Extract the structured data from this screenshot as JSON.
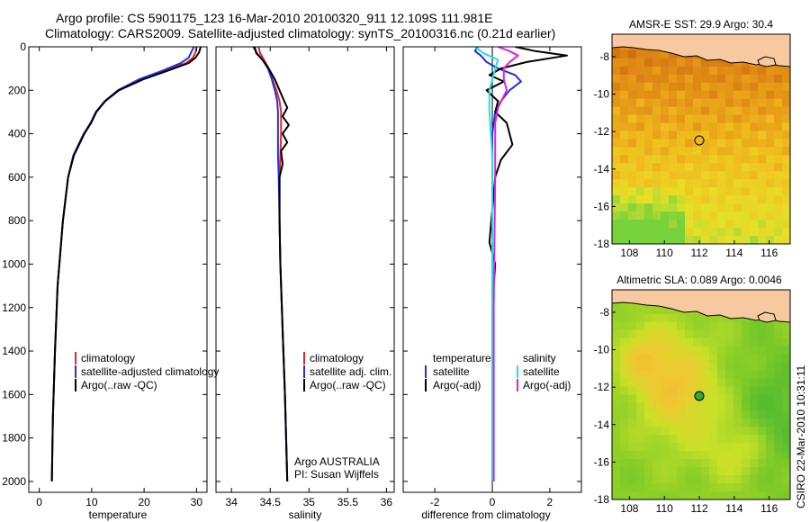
{
  "header": {
    "line1": "Argo profile: CS 5901175_123 16-Mar-2010 20100320_911 12.109S 111.981E",
    "line2": "Climatology: CARS2009. Satellite-adjusted climatology: synTS_20100316.nc (0.21d earlier)"
  },
  "side_stamp": "CSIRO 22-Mar-2010 10:31:11",
  "colors": {
    "clim": "#e8261c",
    "sat": "#2233dd",
    "argo": "#000000",
    "sal_sat": "#22dddd",
    "sal_argo": "#dd22dd",
    "land": "#f7c9a0"
  },
  "chart_data": [
    {
      "type": "line",
      "xlabel": "temperature",
      "xlim": [
        -2,
        32
      ],
      "ylim": [
        2050,
        0
      ],
      "xticks": [
        0,
        10,
        20,
        30
      ],
      "yticks": [
        0,
        200,
        400,
        600,
        800,
        1000,
        1200,
        1400,
        1600,
        1800,
        2000
      ],
      "legend": [
        "climatology",
        "satellite-adjusted climatology",
        "Argo(..raw -QC)"
      ],
      "series": [
        {
          "name": "climatology",
          "color": "#e8261c",
          "x": [
            30.0,
            29.8,
            29.3,
            28.0,
            24.0,
            19.5,
            15.0,
            12.5,
            10.8,
            9.8,
            8.5,
            7.5,
            6.5,
            5.5,
            4.5,
            3.5,
            3.0,
            2.6,
            2.4
          ],
          "y": [
            0,
            25,
            50,
            75,
            110,
            150,
            200,
            250,
            300,
            350,
            400,
            450,
            500,
            600,
            800,
            1100,
            1400,
            1700,
            2000
          ]
        },
        {
          "name": "satellite-adjusted climatology",
          "color": "#2233dd",
          "x": [
            29.5,
            29.0,
            28.5,
            27.0,
            23.5,
            19.0,
            15.0,
            12.5,
            10.8,
            9.8,
            8.5,
            7.5,
            6.5,
            5.5,
            4.5,
            3.5,
            3.0,
            2.6,
            2.4
          ],
          "y": [
            0,
            25,
            50,
            75,
            110,
            150,
            200,
            250,
            300,
            350,
            400,
            450,
            500,
            600,
            800,
            1100,
            1400,
            1700,
            2000
          ]
        },
        {
          "name": "Argo(..raw -QC)",
          "color": "#000000",
          "x": [
            30.8,
            30.5,
            29.8,
            28.5,
            24.5,
            19.8,
            15.2,
            12.6,
            10.9,
            9.9,
            8.6,
            7.6,
            6.6,
            5.5,
            4.5,
            3.5,
            3.0,
            2.6,
            2.4
          ],
          "y": [
            0,
            25,
            50,
            75,
            110,
            150,
            200,
            250,
            300,
            350,
            400,
            450,
            500,
            600,
            800,
            1100,
            1400,
            1700,
            2000
          ]
        }
      ]
    },
    {
      "type": "line",
      "xlabel": "salinity",
      "xlim": [
        33.8,
        36.1
      ],
      "ylim": [
        2050,
        0
      ],
      "xticks": [
        34,
        34.5,
        35,
        35.5,
        36
      ],
      "yticks": [
        0,
        200,
        400,
        600,
        800,
        1000,
        1200,
        1400,
        1600,
        1800,
        2000
      ],
      "legend": [
        "climatology",
        "satellite adj. clim.",
        "Argo(..raw -QC)"
      ],
      "annotation": [
        "Argo AUSTRALIA",
        "PI: Susan Wijffels"
      ],
      "series": [
        {
          "name": "climatology",
          "color": "#e8261c",
          "x": [
            34.35,
            34.37,
            34.42,
            34.48,
            34.53,
            34.58,
            34.62,
            34.64,
            34.64,
            34.63,
            34.62,
            34.62,
            34.63,
            34.66,
            34.69,
            34.72
          ],
          "y": [
            0,
            30,
            60,
            100,
            150,
            200,
            250,
            300,
            400,
            500,
            600,
            800,
            1000,
            1300,
            1600,
            2000
          ]
        },
        {
          "name": "satellite adj. clim.",
          "color": "#2233dd",
          "x": [
            34.28,
            34.33,
            34.4,
            34.47,
            34.52,
            34.56,
            34.59,
            34.6,
            34.6,
            34.6,
            34.61,
            34.62,
            34.63,
            34.66,
            34.69,
            34.72
          ],
          "y": [
            0,
            30,
            60,
            100,
            150,
            200,
            250,
            300,
            400,
            500,
            600,
            800,
            1000,
            1300,
            1600,
            2000
          ]
        },
        {
          "name": "Argo(..raw -QC)",
          "color": "#000000",
          "x": [
            34.3,
            34.32,
            34.4,
            34.48,
            34.56,
            34.62,
            34.68,
            34.72,
            34.66,
            34.74,
            34.66,
            34.72,
            34.64,
            34.66,
            34.62,
            34.62,
            34.63,
            34.66,
            34.69,
            34.72
          ],
          "y": [
            0,
            30,
            60,
            100,
            150,
            200,
            250,
            280,
            320,
            360,
            400,
            440,
            480,
            540,
            600,
            800,
            1000,
            1300,
            1600,
            2000
          ]
        }
      ]
    },
    {
      "type": "line",
      "xlabel": "difference from climatology",
      "xlim": [
        -3.1,
        3.1
      ],
      "ylim": [
        2050,
        0
      ],
      "xticks": [
        -2,
        0,
        2
      ],
      "yticks": [
        0,
        200,
        400,
        600,
        800,
        1000,
        1200,
        1400,
        1600,
        1800,
        2000
      ],
      "legend_temperature_title": "temperature",
      "legend_salinity_title": "salinity",
      "legend": [
        "satellite",
        "Argo(-adj)",
        "satellite",
        "Argo(-adj)"
      ],
      "series": [
        {
          "name": "satellite",
          "color": "#2233dd",
          "x": [
            -0.5,
            -0.6,
            -0.4,
            -0.2,
            0.2,
            0.8,
            1.0,
            0.6,
            0.3,
            0.1,
            0.0,
            0.0,
            0.0
          ],
          "y": [
            0,
            20,
            40,
            70,
            100,
            130,
            160,
            200,
            250,
            300,
            400,
            700,
            2000
          ]
        },
        {
          "name": "Argo(-adj)",
          "color": "#000000",
          "x": [
            0.8,
            1.5,
            2.6,
            1.2,
            0.3,
            -0.1,
            0.4,
            -0.2,
            0.2,
            0.1,
            0.5,
            0.7,
            0.3,
            0.1,
            -0.1,
            0.1,
            0.0,
            0.0
          ],
          "y": [
            0,
            20,
            40,
            70,
            100,
            130,
            160,
            200,
            250,
            300,
            350,
            450,
            520,
            600,
            900,
            1000,
            1200,
            2000
          ]
        },
        {
          "name": "satellite",
          "color": "#22dddd",
          "x": [
            -0.6,
            -0.3,
            0.2,
            0.1,
            -0.1,
            -0.1,
            0.0,
            0.0,
            0.0
          ],
          "y": [
            0,
            30,
            60,
            100,
            200,
            300,
            500,
            1000,
            2000
          ]
        },
        {
          "name": "Argo(-adj)",
          "color": "#dd22dd",
          "x": [
            0.2,
            0.6,
            0.9,
            0.6,
            0.4,
            0.4,
            0.5,
            0.2,
            0.1,
            0.1,
            0.05,
            0.05
          ],
          "y": [
            0,
            20,
            40,
            70,
            100,
            150,
            200,
            280,
            350,
            600,
            1200,
            2000
          ]
        }
      ]
    },
    {
      "type": "heatmap",
      "title": "AMSR-E SST: 29.9 Argo: 30.4",
      "xlim": [
        107,
        117.2
      ],
      "ylim": [
        -18,
        -6.8
      ],
      "xticks": [
        108,
        110,
        112,
        114,
        116
      ],
      "yticks": [
        -8,
        -10,
        -12,
        -14,
        -16,
        -18
      ],
      "marker": {
        "lon": 111.981,
        "lat": -12.109
      }
    },
    {
      "type": "heatmap",
      "title": "Altimetric SLA: 0.089 Argo: 0.0046",
      "xlim": [
        107,
        117.2
      ],
      "ylim": [
        -18,
        -6.8
      ],
      "xticks": [
        108,
        110,
        112,
        114,
        116
      ],
      "yticks": [
        -8,
        -10,
        -12,
        -14,
        -16,
        -18
      ],
      "marker": {
        "lon": 111.981,
        "lat": -12.109
      }
    }
  ]
}
